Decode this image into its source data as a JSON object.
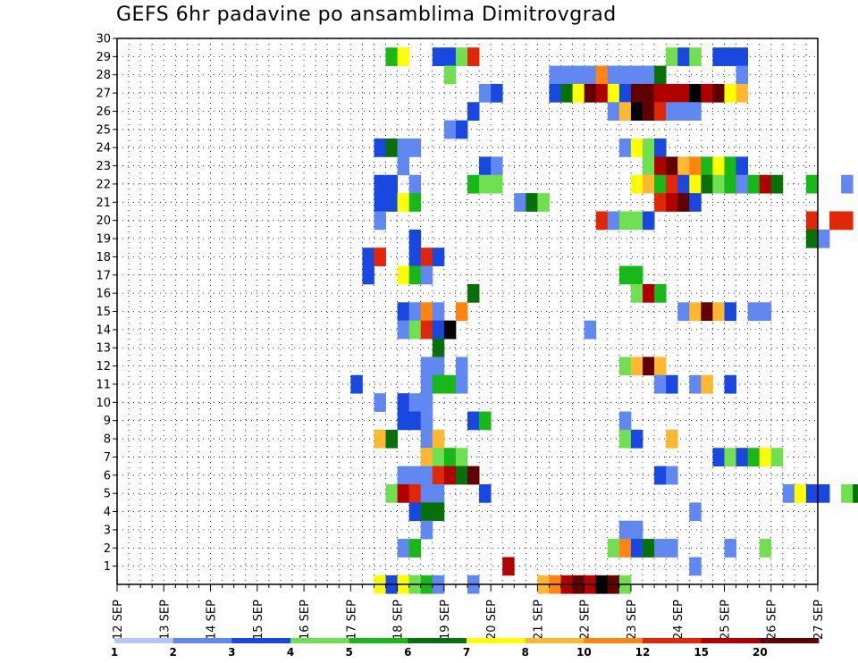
{
  "chart_data": {
    "type": "heatmap",
    "title": "GEFS 6hr padavine po ansamblima Dimitrovgrad",
    "xlabel": "",
    "ylabel": "",
    "x_ticks": [
      "12 SEP",
      "13 SEP",
      "14 SEP",
      "15 SEP",
      "16 SEP",
      "17 SEP",
      "18 SEP",
      "19 SEP",
      "20 SEP",
      "21 SEP",
      "22 SEP",
      "23 SEP",
      "24 SEP",
      "25 SEP",
      "26 SEP",
      "27 SEP"
    ],
    "y_ticks": [
      1,
      2,
      3,
      4,
      5,
      6,
      7,
      8,
      9,
      10,
      11,
      12,
      13,
      14,
      15,
      16,
      17,
      18,
      19,
      20,
      21,
      22,
      23,
      24,
      25,
      26,
      27,
      28,
      29,
      30
    ],
    "ylim": [
      0,
      30
    ],
    "x_steps_6h": 60,
    "grid": true,
    "colorbar": {
      "labels": [
        "1",
        "2",
        "3",
        "4",
        "5",
        "6",
        "7",
        "8",
        "10",
        "12",
        "15",
        "20"
      ],
      "colors": [
        "#b4c8f8",
        "#6088f0",
        "#1848e0",
        "#70e050",
        "#18b818",
        "#087008",
        "#ffff00",
        "#ffb830",
        "#ff8410",
        "#e02808",
        "#b00000",
        "#600000"
      ]
    },
    "cells": [
      [
        23,
        29,
        4
      ],
      [
        24,
        29,
        6
      ],
      [
        27,
        29,
        2
      ],
      [
        28,
        29,
        2
      ],
      [
        29,
        29,
        3
      ],
      [
        30,
        29,
        9
      ],
      [
        47,
        29,
        3
      ],
      [
        48,
        29,
        2
      ],
      [
        49,
        29,
        3
      ],
      [
        51,
        29,
        2
      ],
      [
        52,
        29,
        2
      ],
      [
        53,
        29,
        2
      ],
      [
        28,
        28,
        3
      ],
      [
        37,
        28,
        1
      ],
      [
        38,
        28,
        1
      ],
      [
        39,
        28,
        1
      ],
      [
        40,
        28,
        1
      ],
      [
        41,
        28,
        8
      ],
      [
        42,
        28,
        1
      ],
      [
        43,
        28,
        1
      ],
      [
        44,
        28,
        1
      ],
      [
        45,
        28,
        1
      ],
      [
        46,
        28,
        5
      ],
      [
        53,
        28,
        1
      ],
      [
        31,
        27,
        1
      ],
      [
        32,
        27,
        2
      ],
      [
        37,
        27,
        2
      ],
      [
        38,
        27,
        5
      ],
      [
        39,
        27,
        6
      ],
      [
        40,
        27,
        11
      ],
      [
        41,
        27,
        10
      ],
      [
        42,
        27,
        6
      ],
      [
        43,
        27,
        2
      ],
      [
        44,
        27,
        11
      ],
      [
        45,
        27,
        11
      ],
      [
        46,
        27,
        10
      ],
      [
        47,
        27,
        10
      ],
      [
        48,
        27,
        10
      ],
      [
        49,
        27,
        12
      ],
      [
        50,
        27,
        10
      ],
      [
        51,
        27,
        11
      ],
      [
        52,
        27,
        6
      ],
      [
        53,
        27,
        7
      ],
      [
        30,
        26,
        2
      ],
      [
        42,
        26,
        1
      ],
      [
        43,
        26,
        7
      ],
      [
        44,
        26,
        12
      ],
      [
        45,
        26,
        11
      ],
      [
        46,
        26,
        9
      ],
      [
        47,
        26,
        1
      ],
      [
        48,
        26,
        1
      ],
      [
        49,
        26,
        1
      ],
      [
        28,
        25,
        1
      ],
      [
        29,
        25,
        2
      ],
      [
        22,
        24,
        2
      ],
      [
        23,
        24,
        5
      ],
      [
        24,
        24,
        1
      ],
      [
        25,
        24,
        1
      ],
      [
        43,
        24,
        1
      ],
      [
        44,
        24,
        6
      ],
      [
        45,
        24,
        3
      ],
      [
        46,
        24,
        2
      ],
      [
        24,
        23,
        1
      ],
      [
        31,
        23,
        2
      ],
      [
        32,
        23,
        1
      ],
      [
        45,
        23,
        3
      ],
      [
        46,
        23,
        10
      ],
      [
        47,
        23,
        11
      ],
      [
        48,
        23,
        7
      ],
      [
        49,
        23,
        8
      ],
      [
        50,
        23,
        4
      ],
      [
        51,
        23,
        6
      ],
      [
        52,
        23,
        4
      ],
      [
        53,
        23,
        2
      ],
      [
        22,
        22,
        2
      ],
      [
        23,
        22,
        2
      ],
      [
        25,
        22,
        1
      ],
      [
        30,
        22,
        4
      ],
      [
        31,
        22,
        3
      ],
      [
        32,
        22,
        3
      ],
      [
        44,
        22,
        6
      ],
      [
        45,
        22,
        7
      ],
      [
        46,
        22,
        4
      ],
      [
        47,
        22,
        9
      ],
      [
        48,
        22,
        2
      ],
      [
        49,
        22,
        6
      ],
      [
        50,
        22,
        5
      ],
      [
        51,
        22,
        3
      ],
      [
        52,
        22,
        4
      ],
      [
        53,
        22,
        1
      ],
      [
        54,
        22,
        4
      ],
      [
        55,
        22,
        10
      ],
      [
        56,
        22,
        5
      ],
      [
        59,
        22,
        4
      ],
      [
        62,
        22,
        1
      ],
      [
        22,
        21,
        2
      ],
      [
        23,
        21,
        2
      ],
      [
        24,
        21,
        6
      ],
      [
        25,
        21,
        4
      ],
      [
        34,
        21,
        1
      ],
      [
        35,
        21,
        5
      ],
      [
        36,
        21,
        3
      ],
      [
        46,
        21,
        9
      ],
      [
        47,
        21,
        10
      ],
      [
        48,
        21,
        11
      ],
      [
        49,
        21,
        2
      ],
      [
        22,
        20,
        1
      ],
      [
        41,
        20,
        9
      ],
      [
        42,
        20,
        1
      ],
      [
        43,
        20,
        3
      ],
      [
        44,
        20,
        3
      ],
      [
        45,
        20,
        2
      ],
      [
        59,
        20,
        9
      ],
      [
        61,
        20,
        9
      ],
      [
        62,
        20,
        9
      ],
      [
        25,
        19,
        2
      ],
      [
        59,
        19,
        5
      ],
      [
        60,
        19,
        1
      ],
      [
        21,
        18,
        2
      ],
      [
        22,
        18,
        9
      ],
      [
        25,
        18,
        2
      ],
      [
        26,
        18,
        9
      ],
      [
        27,
        18,
        2
      ],
      [
        21,
        17,
        2
      ],
      [
        24,
        17,
        6
      ],
      [
        25,
        17,
        4
      ],
      [
        26,
        17,
        1
      ],
      [
        43,
        17,
        4
      ],
      [
        44,
        17,
        4
      ],
      [
        30,
        16,
        5
      ],
      [
        44,
        16,
        3
      ],
      [
        45,
        16,
        10
      ],
      [
        46,
        16,
        4
      ],
      [
        24,
        15,
        2
      ],
      [
        25,
        15,
        1
      ],
      [
        26,
        15,
        8
      ],
      [
        27,
        15,
        1
      ],
      [
        29,
        15,
        8
      ],
      [
        48,
        15,
        1
      ],
      [
        49,
        15,
        7
      ],
      [
        50,
        15,
        11
      ],
      [
        51,
        15,
        7
      ],
      [
        52,
        15,
        2
      ],
      [
        54,
        15,
        1
      ],
      [
        55,
        15,
        1
      ],
      [
        24,
        14,
        1
      ],
      [
        25,
        14,
        3
      ],
      [
        26,
        14,
        9
      ],
      [
        27,
        14,
        2
      ],
      [
        28,
        14,
        12
      ],
      [
        40,
        14,
        1
      ],
      [
        27,
        13,
        5
      ],
      [
        65,
        13,
        10
      ],
      [
        66,
        13,
        6
      ],
      [
        67,
        13,
        6
      ],
      [
        68,
        13,
        2
      ],
      [
        26,
        12,
        1
      ],
      [
        27,
        12,
        1
      ],
      [
        29,
        12,
        1
      ],
      [
        43,
        12,
        3
      ],
      [
        44,
        12,
        7
      ],
      [
        45,
        12,
        11
      ],
      [
        46,
        12,
        7
      ],
      [
        20,
        11,
        2
      ],
      [
        26,
        11,
        1
      ],
      [
        27,
        11,
        4
      ],
      [
        28,
        11,
        4
      ],
      [
        29,
        11,
        1
      ],
      [
        46,
        11,
        1
      ],
      [
        47,
        11,
        2
      ],
      [
        49,
        11,
        1
      ],
      [
        50,
        11,
        7
      ],
      [
        52,
        11,
        2
      ],
      [
        22,
        10,
        1
      ],
      [
        24,
        10,
        2
      ],
      [
        25,
        10,
        1
      ],
      [
        26,
        10,
        1
      ],
      [
        24,
        9,
        2
      ],
      [
        25,
        9,
        2
      ],
      [
        26,
        9,
        1
      ],
      [
        30,
        9,
        2
      ],
      [
        31,
        9,
        4
      ],
      [
        43,
        9,
        1
      ],
      [
        22,
        8,
        7
      ],
      [
        23,
        8,
        5
      ],
      [
        26,
        8,
        1
      ],
      [
        27,
        8,
        7
      ],
      [
        43,
        8,
        3
      ],
      [
        44,
        8,
        2
      ],
      [
        47,
        8,
        7
      ],
      [
        26,
        7,
        7
      ],
      [
        27,
        7,
        3
      ],
      [
        28,
        7,
        4
      ],
      [
        29,
        7,
        3
      ],
      [
        51,
        7,
        2
      ],
      [
        52,
        7,
        3
      ],
      [
        53,
        7,
        2
      ],
      [
        54,
        7,
        4
      ],
      [
        55,
        7,
        6
      ],
      [
        56,
        7,
        3
      ],
      [
        66,
        7,
        2
      ],
      [
        67,
        7,
        9
      ],
      [
        24,
        6,
        1
      ],
      [
        25,
        6,
        1
      ],
      [
        26,
        6,
        1
      ],
      [
        27,
        6,
        9
      ],
      [
        28,
        6,
        10
      ],
      [
        29,
        6,
        5
      ],
      [
        30,
        6,
        11
      ],
      [
        46,
        6,
        2
      ],
      [
        47,
        6,
        1
      ],
      [
        69,
        6,
        2
      ],
      [
        23,
        5,
        3
      ],
      [
        24,
        5,
        10
      ],
      [
        25,
        5,
        9
      ],
      [
        26,
        5,
        1
      ],
      [
        27,
        5,
        1
      ],
      [
        31,
        5,
        2
      ],
      [
        57,
        5,
        1
      ],
      [
        58,
        5,
        6
      ],
      [
        59,
        5,
        2
      ],
      [
        60,
        5,
        2
      ],
      [
        62,
        5,
        3
      ],
      [
        63,
        5,
        5
      ],
      [
        64,
        5,
        2
      ],
      [
        65,
        5,
        1
      ],
      [
        69,
        5,
        1
      ],
      [
        25,
        4,
        2
      ],
      [
        26,
        4,
        5
      ],
      [
        27,
        4,
        5
      ],
      [
        49,
        4,
        1
      ],
      [
        26,
        3,
        1
      ],
      [
        43,
        3,
        1
      ],
      [
        44,
        3,
        1
      ],
      [
        24,
        2,
        1
      ],
      [
        25,
        2,
        4
      ],
      [
        42,
        2,
        3
      ],
      [
        43,
        2,
        8
      ],
      [
        44,
        2,
        2
      ],
      [
        45,
        2,
        5
      ],
      [
        46,
        2,
        1
      ],
      [
        47,
        2,
        1
      ],
      [
        52,
        2,
        1
      ],
      [
        55,
        2,
        3
      ],
      [
        33,
        1,
        10
      ],
      [
        49,
        1,
        1
      ],
      [
        22,
        0,
        6
      ],
      [
        23,
        0,
        2
      ],
      [
        24,
        0,
        6
      ],
      [
        25,
        0,
        3
      ],
      [
        26,
        0,
        4
      ],
      [
        27,
        0,
        1
      ],
      [
        30,
        0,
        1
      ],
      [
        36,
        0,
        7
      ],
      [
        37,
        0,
        8
      ],
      [
        38,
        0,
        10
      ],
      [
        39,
        0,
        11
      ],
      [
        40,
        0,
        10
      ],
      [
        41,
        0,
        12
      ],
      [
        42,
        0,
        11
      ],
      [
        43,
        0,
        3
      ],
      [
        66,
        0,
        2
      ],
      [
        67,
        0,
        1
      ]
    ]
  }
}
